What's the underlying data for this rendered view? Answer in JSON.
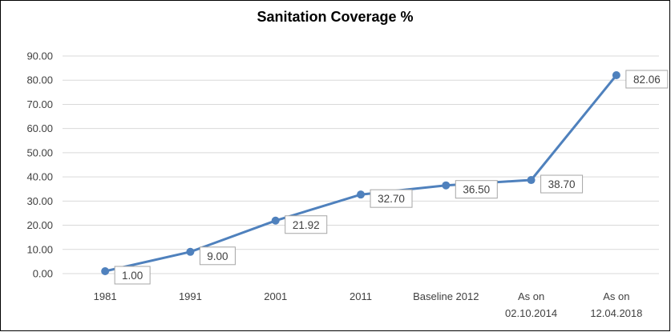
{
  "chart_data": {
    "type": "line",
    "title": "Sanitation Coverage %",
    "categories": [
      "1981",
      "1991",
      "2001",
      "2011",
      "Baseline 2012",
      "As on 02.10.2014",
      "As on 12.04.2018"
    ],
    "category_lines": [
      [
        "1981"
      ],
      [
        "1991"
      ],
      [
        "2001"
      ],
      [
        "2011"
      ],
      [
        "Baseline 2012"
      ],
      [
        "As on",
        "02.10.2014"
      ],
      [
        "As on",
        "12.04.2018"
      ]
    ],
    "series": [
      {
        "values": [
          1.0,
          9.0,
          21.92,
          32.7,
          36.5,
          38.7,
          82.06
        ],
        "labels": [
          "1.00",
          "9.00",
          "21.92",
          "32.70",
          "36.50",
          "38.70",
          "82.06"
        ]
      }
    ],
    "yticks": [
      "0.00",
      "10.00",
      "20.00",
      "30.00",
      "40.00",
      "50.00",
      "60.00",
      "70.00",
      "80.00",
      "90.00"
    ],
    "ylim": [
      0,
      90
    ],
    "grid": true,
    "legend": "none",
    "colors": {
      "line": "#4f81bd",
      "grid": "#d9d9d9",
      "frame": "#000000",
      "label_border": "#a6a6a6",
      "text": "#404040"
    }
  }
}
